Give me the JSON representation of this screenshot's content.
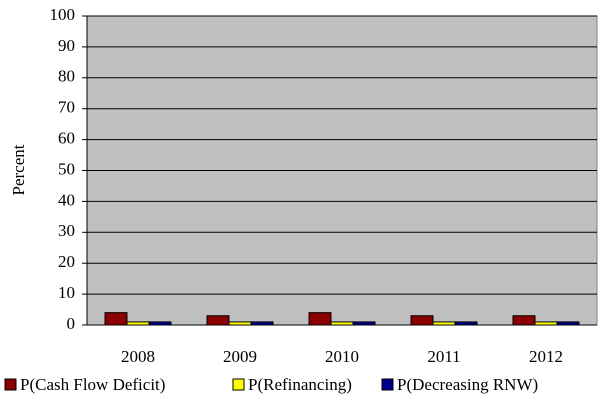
{
  "chart_data": {
    "type": "bar",
    "y_label": "Percent",
    "categories": [
      "2008",
      "2009",
      "2010",
      "2011",
      "2012"
    ],
    "series": [
      {
        "name": "P(Cash Flow Deficit)",
        "color": "#8b0000",
        "values": [
          4,
          3,
          4,
          3,
          3
        ]
      },
      {
        "name": "P(Refinancing)",
        "color": "#ffff00",
        "values": [
          1,
          1,
          1,
          1,
          1
        ]
      },
      {
        "name": "P(Decreasing RNW)",
        "color": "#00008b",
        "values": [
          1,
          1,
          1,
          1,
          1
        ]
      }
    ],
    "ylim": [
      0,
      100
    ],
    "yticks": [
      0,
      10,
      20,
      30,
      40,
      50,
      60,
      70,
      80,
      90,
      100
    ],
    "grid": true,
    "legend": "bottom"
  }
}
